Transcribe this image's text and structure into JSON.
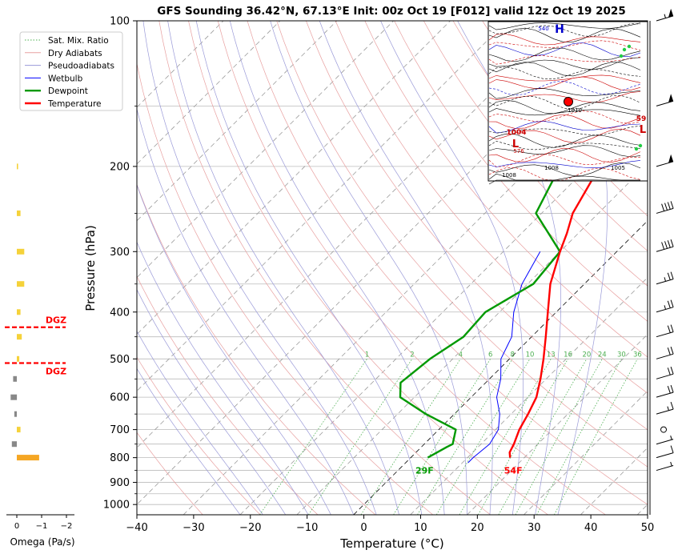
{
  "chart_data": {
    "type": "line",
    "title": "GFS Sounding 36.42°N, 67.13°E Init: 00z Oct 19 [F012] valid 12z Oct 19 2025",
    "xlabel": "Temperature (°C)",
    "ylabel": "Pressure (hPa)",
    "xlim": [
      -40,
      50
    ],
    "ylim": [
      1050,
      100
    ],
    "yscale": "log",
    "x_ticks": [
      -40,
      -30,
      -20,
      -10,
      0,
      10,
      20,
      30,
      40,
      50
    ],
    "x_tick_labels": [
      "−40",
      "−30",
      "−20",
      "−10",
      "0",
      "10",
      "20",
      "30",
      "40",
      "50"
    ],
    "y_ticks": [
      100,
      200,
      300,
      400,
      500,
      600,
      700,
      800,
      900,
      1000
    ],
    "y_tick_labels": [
      "100",
      "200",
      "300",
      "400",
      "500",
      "600",
      "700",
      "800",
      "900",
      "1000"
    ],
    "grid": true,
    "legend_position": "top-left",
    "legend": [
      {
        "name": "Sat. Mix. Ratio",
        "color": "#4caf50",
        "style": "dotted"
      },
      {
        "name": "Dry Adiabats",
        "color": "#e8a0a0",
        "style": "solid"
      },
      {
        "name": "Pseudoadiabats",
        "color": "#9a9ad8",
        "style": "solid"
      },
      {
        "name": "Wetbulb",
        "color": "#0000ff",
        "style": "solid"
      },
      {
        "name": "Dewpoint",
        "color": "#009900",
        "style": "solid"
      },
      {
        "name": "Temperature",
        "color": "#ff0000",
        "style": "solid"
      }
    ],
    "series": [
      {
        "name": "Temperature",
        "color": "#ff0000",
        "points": [
          [
            800,
            17.5
          ],
          [
            780,
            16.5
          ],
          [
            750,
            15.8
          ],
          [
            700,
            14.2
          ],
          [
            650,
            13.0
          ],
          [
            600,
            11.5
          ],
          [
            550,
            9.0
          ],
          [
            500,
            6.0
          ],
          [
            450,
            2.5
          ],
          [
            400,
            -1.5
          ],
          [
            350,
            -6.0
          ],
          [
            300,
            -10.0
          ],
          [
            275,
            -12.0
          ],
          [
            250,
            -14.5
          ],
          [
            200,
            -18.0
          ],
          [
            180,
            -17.0
          ],
          [
            150,
            -13.0
          ],
          [
            130,
            -12.5
          ],
          [
            100,
            -11.0
          ]
        ]
      },
      {
        "name": "Dewpoint",
        "color": "#009900",
        "points": [
          [
            800,
            3.0
          ],
          [
            760,
            4.5
          ],
          [
            750,
            5.0
          ],
          [
            700,
            3.0
          ],
          [
            650,
            -5.0
          ],
          [
            600,
            -12.5
          ],
          [
            560,
            -15.0
          ],
          [
            500,
            -14.0
          ],
          [
            450,
            -12.0
          ],
          [
            400,
            -12.5
          ],
          [
            350,
            -9.0
          ],
          [
            300,
            -10.0
          ],
          [
            250,
            -21.0
          ],
          [
            200,
            -25.0
          ],
          [
            150,
            -29.0
          ],
          [
            100,
            -30.0
          ]
        ]
      },
      {
        "name": "Wetbulb",
        "color": "#0000ff",
        "points": [
          [
            820,
            11.0
          ],
          [
            800,
            11.0
          ],
          [
            750,
            11.5
          ],
          [
            700,
            10.5
          ],
          [
            650,
            8.0
          ],
          [
            600,
            4.5
          ],
          [
            550,
            2.0
          ],
          [
            500,
            -1.5
          ],
          [
            450,
            -3.5
          ],
          [
            400,
            -7.5
          ],
          [
            350,
            -11.0
          ],
          [
            300,
            -13.5
          ]
        ]
      }
    ],
    "mixing_ratio_labels": [
      "1",
      "2",
      "4",
      "6",
      "8",
      "10",
      "13",
      "16",
      "20",
      "24",
      "30",
      "36"
    ],
    "surface_labels": {
      "dewpoint": "29F",
      "temperature": "54F"
    },
    "omega_panel": {
      "xlabel": "Omega (Pa/s)",
      "ticks": [
        "0",
        "−1",
        "−2"
      ],
      "dgz_label": "DGZ",
      "dgz_top_hpa": 430,
      "dgz_bottom_hpa": 510,
      "bars": [
        {
          "p": 200,
          "omega": -0.05,
          "color": "#f5d23a"
        },
        {
          "p": 250,
          "omega": -0.15,
          "color": "#f5d23a"
        },
        {
          "p": 300,
          "omega": -0.3,
          "color": "#f5d23a"
        },
        {
          "p": 350,
          "omega": -0.3,
          "color": "#f5d23a"
        },
        {
          "p": 400,
          "omega": -0.15,
          "color": "#f5d23a"
        },
        {
          "p": 450,
          "omega": -0.2,
          "color": "#f5d23a"
        },
        {
          "p": 500,
          "omega": -0.1,
          "color": "#f5d23a"
        },
        {
          "p": 550,
          "omega": 0.15,
          "color": "#888888"
        },
        {
          "p": 600,
          "omega": 0.25,
          "color": "#888888"
        },
        {
          "p": 650,
          "omega": 0.1,
          "color": "#888888"
        },
        {
          "p": 700,
          "omega": -0.15,
          "color": "#f5d23a"
        },
        {
          "p": 750,
          "omega": 0.2,
          "color": "#888888"
        },
        {
          "p": 800,
          "omega": -0.9,
          "color": "#f5a623"
        }
      ]
    },
    "wind_barbs": [
      {
        "p": 100,
        "speed_kt": 55
      },
      {
        "p": 150,
        "speed_kt": 50
      },
      {
        "p": 200,
        "speed_kt": 50
      },
      {
        "p": 250,
        "speed_kt": 40
      },
      {
        "p": 300,
        "speed_kt": 40
      },
      {
        "p": 350,
        "speed_kt": 25
      },
      {
        "p": 400,
        "speed_kt": 25
      },
      {
        "p": 450,
        "speed_kt": 20
      },
      {
        "p": 500,
        "speed_kt": 20
      },
      {
        "p": 550,
        "speed_kt": 20
      },
      {
        "p": 600,
        "speed_kt": 20
      },
      {
        "p": 650,
        "speed_kt": 15
      },
      {
        "p": 700,
        "speed_kt": 0
      },
      {
        "p": 750,
        "speed_kt": 5
      },
      {
        "p": 800,
        "speed_kt": 10
      },
      {
        "p": 850,
        "speed_kt": 5
      }
    ],
    "inset_map": {
      "labels": [
        "H",
        "L",
        "L",
        "540",
        "1004",
        "1008",
        "1008",
        "1010",
        "1005",
        "576",
        "59"
      ]
    }
  }
}
